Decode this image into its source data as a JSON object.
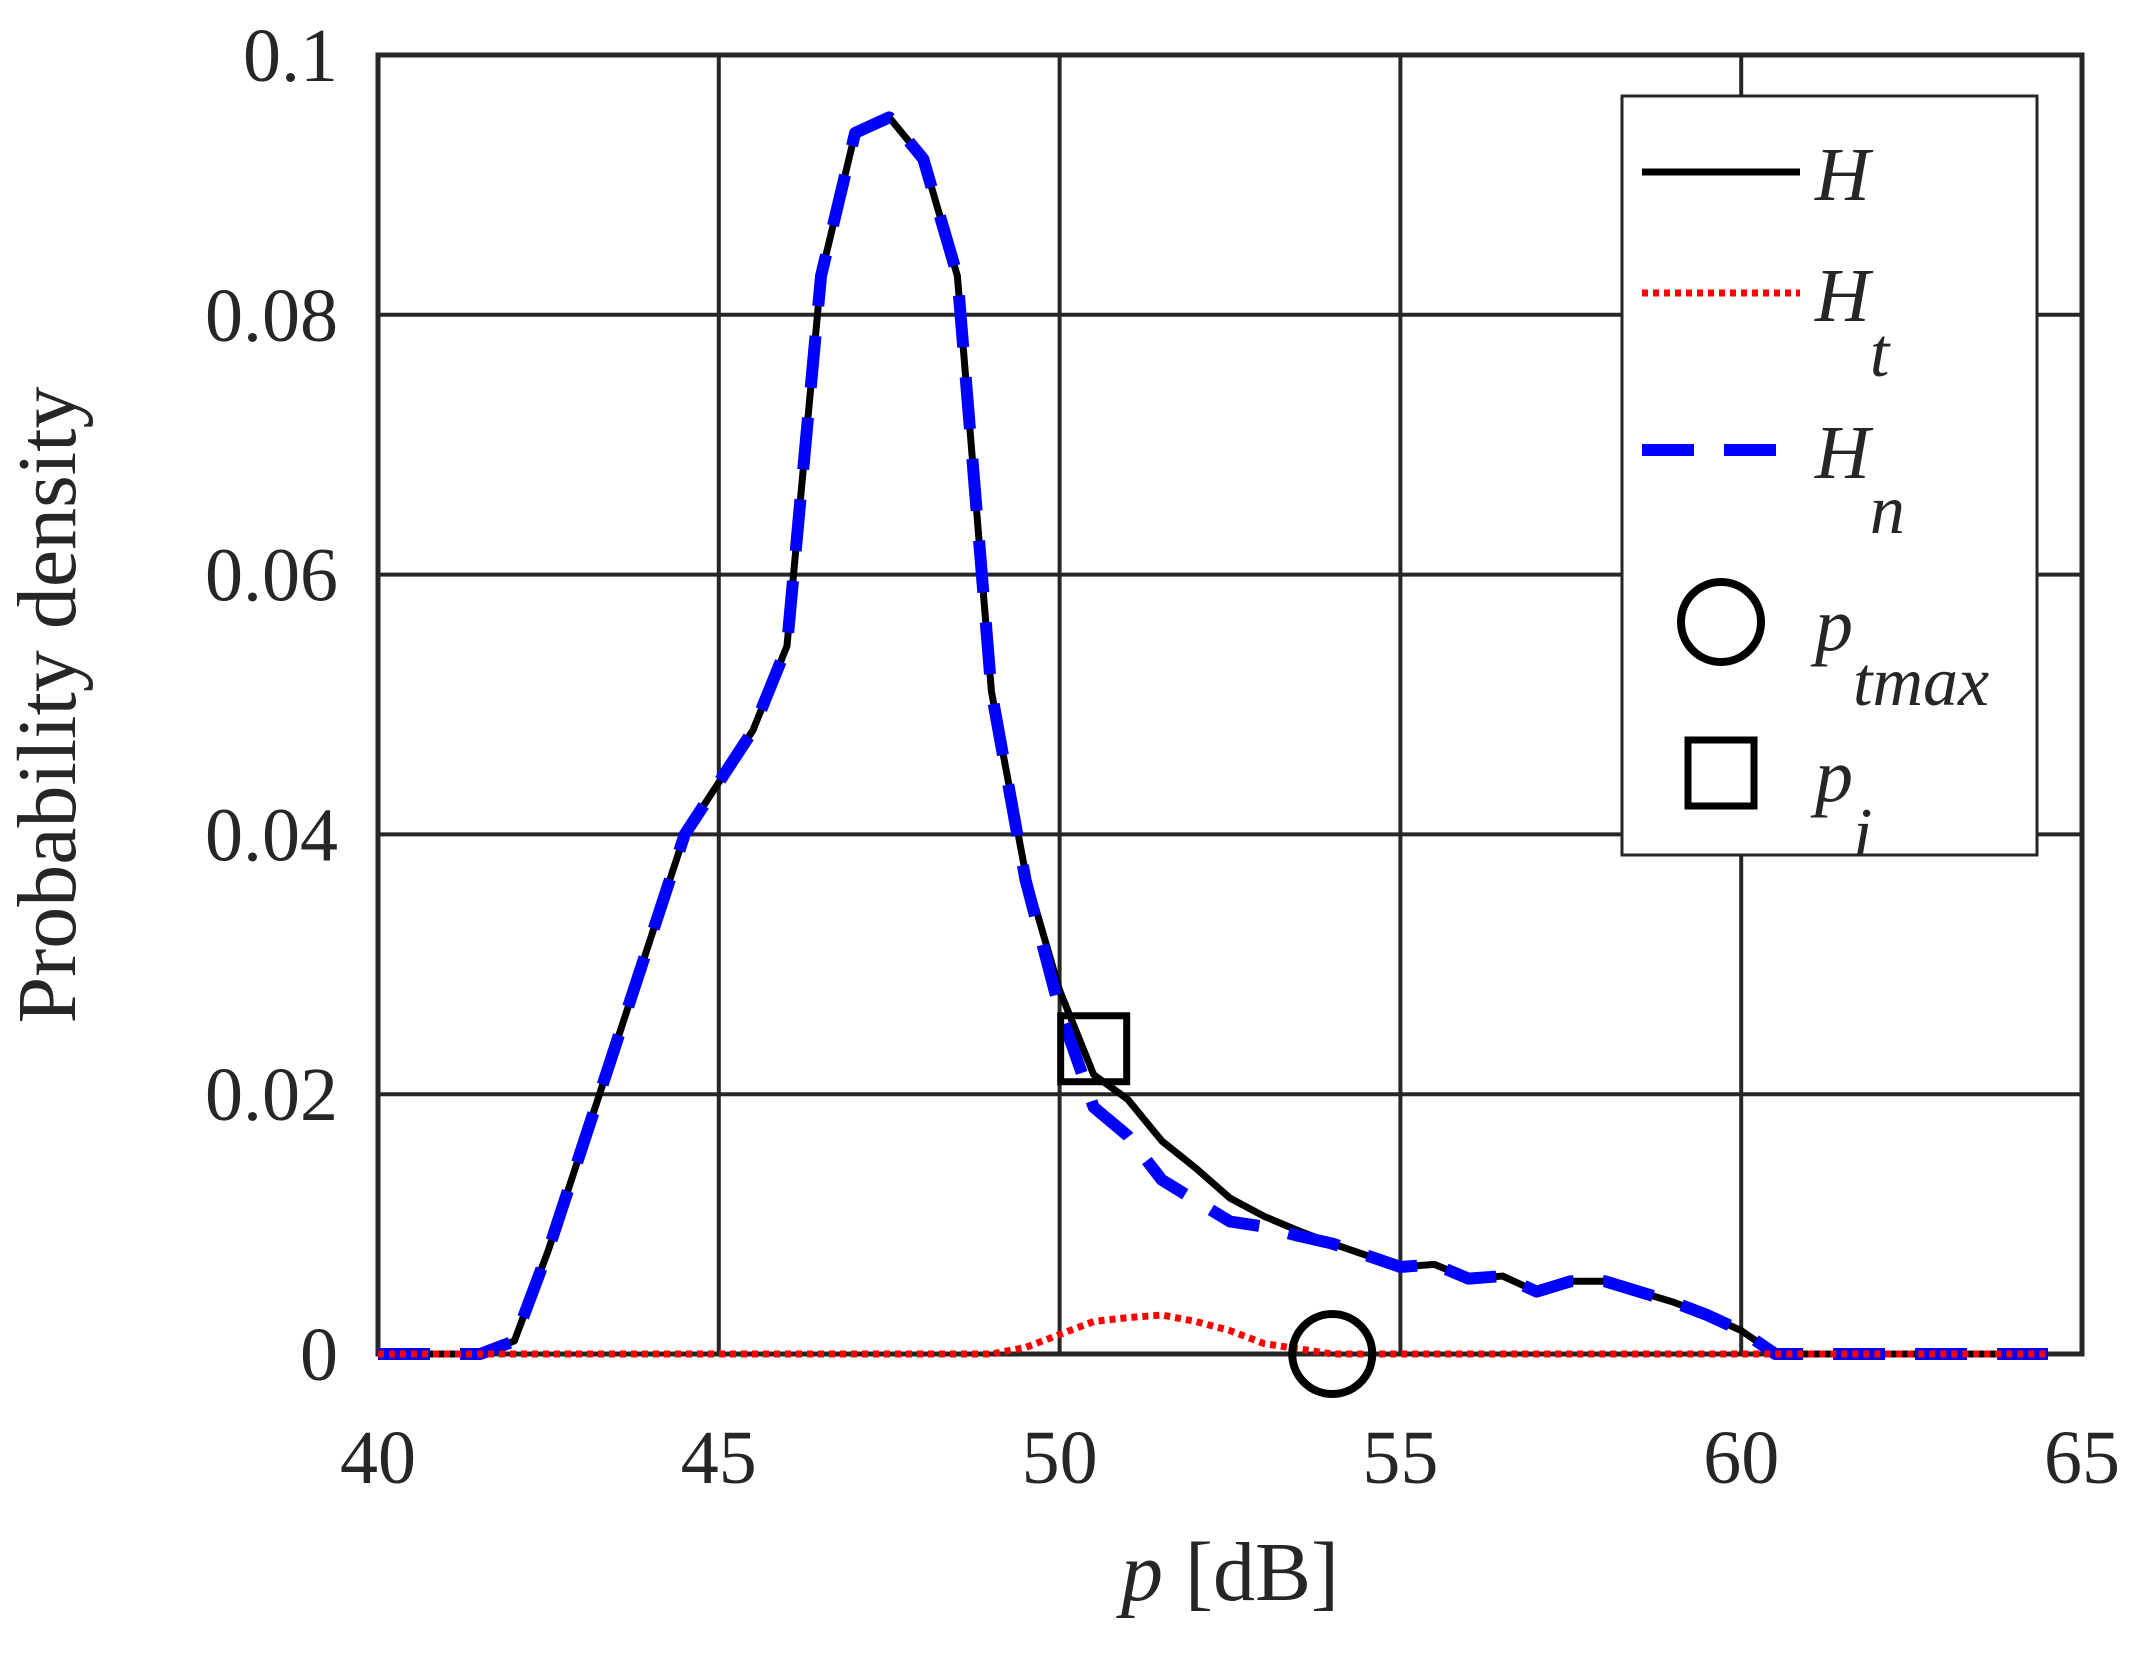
{
  "chart_data": {
    "type": "line",
    "ylabel": "Probability density",
    "xlabel": "p",
    "xlabel_unit": "[dB]",
    "xlim": [
      40,
      65
    ],
    "xticks": [
      40,
      45,
      50,
      55,
      60,
      65
    ],
    "ylim": [
      0,
      0.1
    ],
    "yticks": [
      0,
      0.02,
      0.04,
      0.06,
      0.08,
      0.1
    ],
    "grid": true,
    "legend": "upper right",
    "x": [
      40,
      40.5,
      41,
      41.5,
      42,
      42.5,
      43,
      43.5,
      44,
      44.5,
      45,
      45.5,
      46,
      46.5,
      47,
      47.5,
      48,
      48.5,
      49,
      49.5,
      50,
      50.5,
      51,
      51.5,
      52,
      52.5,
      53,
      53.5,
      54,
      54.5,
      55,
      55.5,
      56,
      56.5,
      57,
      57.5,
      58,
      58.5,
      59,
      59.5,
      60,
      60.5,
      61,
      61.5,
      62,
      62.5,
      63,
      63.5,
      64,
      64.5
    ],
    "series": [
      {
        "name": "H",
        "name_sub": null,
        "color": "#000000",
        "style": "solid",
        "values": [
          0,
          0,
          0,
          0,
          0.001,
          0.008,
          0.016,
          0.024,
          0.032,
          0.04,
          0.044,
          0.048,
          0.0545,
          0.083,
          0.094,
          0.0952,
          0.092,
          0.083,
          0.051,
          0.037,
          0.028,
          0.0215,
          0.0196,
          0.0164,
          0.0143,
          0.012,
          0.0106,
          0.0095,
          0.0085,
          0.0076,
          0.0067,
          0.0069,
          0.0058,
          0.006,
          0.0048,
          0.0056,
          0.0056,
          0.0048,
          0.004,
          0.003,
          0.0018,
          0,
          0,
          0,
          0,
          0,
          0,
          0,
          0,
          0
        ]
      },
      {
        "name": "H",
        "name_sub": "t",
        "color": "#ff0000",
        "style": "dotted",
        "values": [
          0,
          0,
          0,
          0,
          0,
          0,
          0,
          0,
          0,
          0,
          0,
          0,
          0,
          0,
          0,
          0,
          0,
          0,
          0,
          0.0005,
          0.0015,
          0.0025,
          0.0028,
          0.003,
          0.0025,
          0.0018,
          0.0008,
          0.0004,
          0,
          0,
          0,
          0,
          0,
          0,
          0,
          0,
          0,
          0,
          0,
          0,
          0,
          0,
          0,
          0,
          0,
          0,
          0,
          0,
          0,
          0
        ]
      },
      {
        "name": "H",
        "name_sub": "n",
        "color": "#0000ff",
        "style": "dashed",
        "values": [
          0,
          0,
          0,
          0,
          0.001,
          0.008,
          0.016,
          0.024,
          0.032,
          0.04,
          0.044,
          0.048,
          0.0545,
          0.083,
          0.094,
          0.0952,
          0.092,
          0.083,
          0.051,
          0.0365,
          0.0265,
          0.019,
          0.0168,
          0.0134,
          0.0118,
          0.0102,
          0.0098,
          0.0091,
          0.0085,
          0.0076,
          0.0067,
          0.0069,
          0.0058,
          0.006,
          0.0048,
          0.0056,
          0.0056,
          0.0048,
          0.004,
          0.003,
          0.0018,
          0,
          0,
          0,
          0,
          0,
          0,
          0,
          0,
          0
        ]
      }
    ],
    "markers": [
      {
        "name": "p",
        "name_sub": "tmax",
        "shape": "circle",
        "color": "#000000",
        "x": 54,
        "y": 0
      },
      {
        "name": "p",
        "name_sub": "i",
        "shape": "square",
        "color": "#000000",
        "x": 50.5,
        "y": 0.0235
      }
    ]
  }
}
